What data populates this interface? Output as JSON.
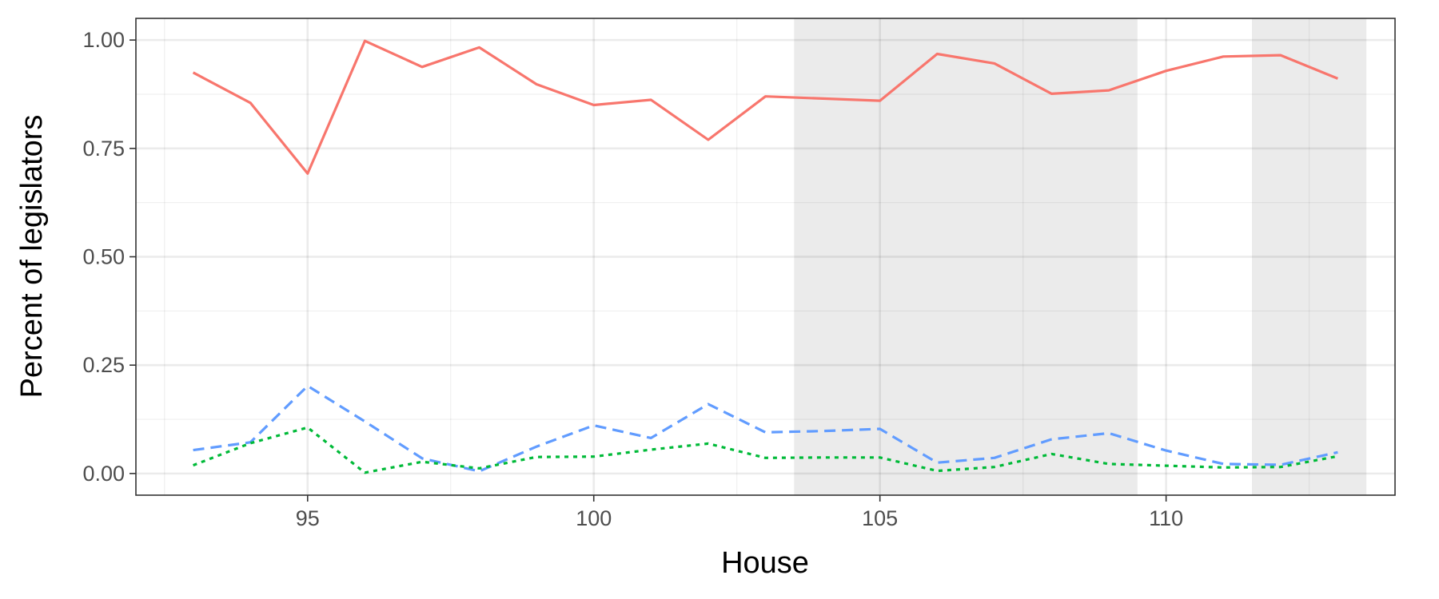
{
  "chart_data": {
    "type": "line",
    "title": "",
    "xlabel": "House",
    "ylabel": "Percent of legislators",
    "xlim": [
      92,
      114
    ],
    "ylim": [
      -0.05,
      1.05
    ],
    "x_ticks": [
      95,
      100,
      105,
      110
    ],
    "y_ticks": [
      0.0,
      0.25,
      0.5,
      0.75,
      1.0
    ],
    "y_tick_labels": [
      "0.00",
      "0.25",
      "0.50",
      "0.75",
      "1.00"
    ],
    "x_tick_labels": [
      "95",
      "100",
      "105",
      "110"
    ],
    "grid": true,
    "legend": "none",
    "shaded_ranges": [
      [
        103.5,
        109.5
      ],
      [
        111.5,
        113.5
      ]
    ],
    "shade_color": "#ebebeb",
    "x": [
      93,
      94,
      95,
      96,
      97,
      98,
      99,
      100,
      101,
      102,
      103,
      104,
      105,
      106,
      107,
      108,
      109,
      110,
      111,
      112,
      113
    ],
    "series": [
      {
        "color": "#F8766D",
        "dash": "solid",
        "values": [
          0.925,
          0.855,
          0.692,
          0.998,
          0.938,
          0.983,
          0.898,
          0.85,
          0.862,
          0.77,
          0.87,
          0.865,
          0.86,
          0.968,
          0.946,
          0.876,
          0.884,
          0.929,
          0.962,
          0.965,
          0.911
        ]
      },
      {
        "color": "#619CFF",
        "dash": "dashed",
        "values": [
          0.054,
          0.072,
          0.202,
          0.12,
          0.035,
          0.005,
          0.062,
          0.111,
          0.082,
          0.16,
          0.095,
          0.098,
          0.103,
          0.025,
          0.036,
          0.079,
          0.093,
          0.053,
          0.022,
          0.02,
          0.049
        ]
      },
      {
        "color": "#00BA38",
        "dash": "dotted",
        "values": [
          0.019,
          0.07,
          0.106,
          0.002,
          0.027,
          0.012,
          0.038,
          0.039,
          0.055,
          0.069,
          0.036,
          0.037,
          0.037,
          0.006,
          0.015,
          0.045,
          0.022,
          0.018,
          0.014,
          0.015,
          0.04
        ]
      }
    ]
  }
}
